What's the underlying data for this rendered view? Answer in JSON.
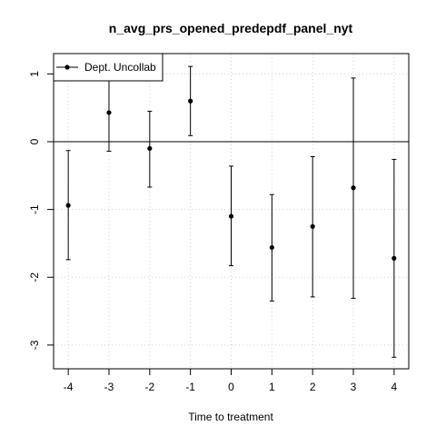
{
  "chart_data": {
    "type": "scatter",
    "title": "n_avg_prs_opened_predepdf_panel_nyt",
    "xlabel": "Time to treatment",
    "ylabel": "",
    "x_ticks": [
      -4,
      -3,
      -2,
      -1,
      0,
      1,
      2,
      3,
      4
    ],
    "y_ticks": [
      -3,
      -2,
      -1,
      0,
      1
    ],
    "xlim": [
      -4.36,
      4.36
    ],
    "ylim": [
      -3.35,
      1.3
    ],
    "grid": true,
    "reference_line_y": 0,
    "legend_position": "top-left",
    "series": [
      {
        "name": "Dept. Uncollab",
        "points": [
          {
            "x": -4,
            "y": -0.94,
            "lower": -1.74,
            "upper": -0.13
          },
          {
            "x": -3,
            "y": 0.43,
            "lower": -0.14,
            "upper": 0.99
          },
          {
            "x": -2,
            "y": -0.1,
            "lower": -0.67,
            "upper": 0.45
          },
          {
            "x": -1,
            "y": 0.6,
            "lower": 0.09,
            "upper": 1.11
          },
          {
            "x": 0,
            "y": -1.1,
            "lower": -1.83,
            "upper": -0.36
          },
          {
            "x": 1,
            "y": -1.56,
            "lower": -2.35,
            "upper": -0.78
          },
          {
            "x": 2,
            "y": -1.25,
            "lower": -2.29,
            "upper": -0.22
          },
          {
            "x": 3,
            "y": -0.68,
            "lower": -2.31,
            "upper": 0.94
          },
          {
            "x": 4,
            "y": -1.72,
            "lower": -3.18,
            "upper": -0.26
          }
        ]
      }
    ]
  }
}
